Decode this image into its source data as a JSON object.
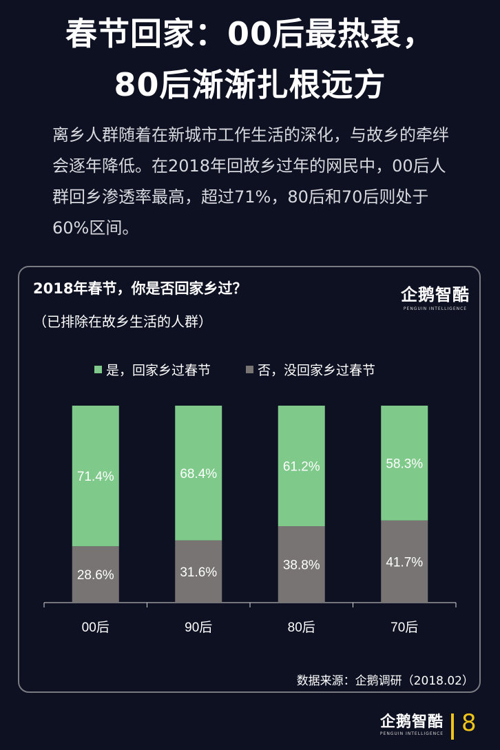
{
  "headline": {
    "line1": "春节回家：00后最热衷，",
    "line2": "80后渐渐扎根远方"
  },
  "intro": "离乡人群随着在新城市工作生活的深化，与故乡的牵绊会逐年降低。在2018年回故乡过年的网民中，00后人群回乡渗透率最高，超过71%，80后和70后则处于60%区间。",
  "panel": {
    "title": "2018年春节，你是否回家乡过？",
    "subtitle": "（已排除在故乡生活的人群）",
    "source": "数据来源：企鹅调研（2018.02）"
  },
  "brand": {
    "name": "企鹅智酷",
    "tagline": "PENGUIN INTELLIGENCE"
  },
  "footer": {
    "page_number": "8"
  },
  "colors": {
    "background": "#0e1122",
    "yes": "#7fc98a",
    "no": "#787474",
    "accent": "#f0c419"
  },
  "chart_data": {
    "type": "bar",
    "stacked": true,
    "categories": [
      "00后",
      "90后",
      "80后",
      "70后"
    ],
    "series": [
      {
        "name": "是，回家乡过春节",
        "values": [
          71.4,
          68.4,
          61.2,
          58.3
        ],
        "labels": [
          "71.4%",
          "68.4%",
          "61.2%",
          "58.3%"
        ]
      },
      {
        "name": "否，没回家乡过春节",
        "values": [
          28.6,
          31.6,
          38.8,
          41.7
        ],
        "labels": [
          "28.6%",
          "31.6%",
          "38.8%",
          "41.7%"
        ]
      }
    ],
    "ylim": [
      0,
      100
    ],
    "legend": "top-center",
    "grid": false
  }
}
